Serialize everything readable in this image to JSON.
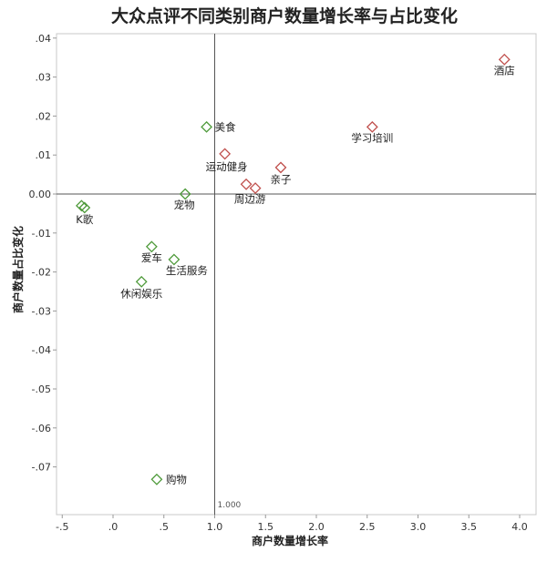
{
  "chart_data": {
    "type": "scatter",
    "title": "大众点评不同类别商户数量增长率与占比变化",
    "xlabel": "商户数量增长率",
    "ylabel": "商户数量占比变化",
    "xlim": [
      -0.55,
      4.05
    ],
    "ylim": [
      -0.0805,
      0.0405
    ],
    "x_ticks": [
      {
        "value": -0.5,
        "label": "-.5"
      },
      {
        "value": 0,
        "label": ".0"
      },
      {
        "value": 0.5,
        "label": ".5"
      },
      {
        "value": 1.0,
        "label": "1.0"
      },
      {
        "value": 1.5,
        "label": "1.5"
      },
      {
        "value": 2.0,
        "label": "2.0"
      },
      {
        "value": 2.5,
        "label": "2.5"
      },
      {
        "value": 3.0,
        "label": "3.0"
      },
      {
        "value": 3.5,
        "label": "3.5"
      },
      {
        "value": 4.0,
        "label": "4.0"
      }
    ],
    "y_ticks": [
      {
        "value": 0.04,
        "label": ".04"
      },
      {
        "value": 0.03,
        "label": ".03"
      },
      {
        "value": 0.02,
        "label": ".02"
      },
      {
        "value": 0.01,
        "label": ".01"
      },
      {
        "value": 0.0,
        "label": "0.00"
      },
      {
        "value": -0.01,
        "label": "-.01"
      },
      {
        "value": -0.02,
        "label": "-.02"
      },
      {
        "value": -0.03,
        "label": "-.03"
      },
      {
        "value": -0.04,
        "label": "-.04"
      },
      {
        "value": -0.05,
        "label": "-.05"
      },
      {
        "value": -0.06,
        "label": "-.06"
      },
      {
        "value": -0.07,
        "label": "-.07"
      }
    ],
    "reference_lines": {
      "x": 1.0,
      "y": 0.0,
      "x_label": "1.000"
    },
    "grid": false,
    "colors": {
      "positive": "#c0504d",
      "negative": "#4e9a3a"
    },
    "points": [
      {
        "label": "酒店",
        "x": 3.85,
        "y": 0.0345,
        "group": "positive"
      },
      {
        "label": "学习培训",
        "x": 2.55,
        "y": 0.0172,
        "group": "positive"
      },
      {
        "label": "运动健身",
        "x": 1.1,
        "y": 0.0103,
        "group": "positive"
      },
      {
        "label": "亲子",
        "x": 1.65,
        "y": 0.0068,
        "group": "positive"
      },
      {
        "label": "",
        "x": 1.31,
        "y": 0.0025,
        "group": "positive"
      },
      {
        "label": "周边游",
        "x": 1.4,
        "y": 0.0015,
        "group": "positive"
      },
      {
        "label": "美食",
        "x": 0.92,
        "y": 0.0172,
        "group": "negative"
      },
      {
        "label": "宠物",
        "x": 0.71,
        "y": 0.0,
        "group": "negative"
      },
      {
        "label": "",
        "x": -0.31,
        "y": -0.003,
        "group": "negative"
      },
      {
        "label": "K歌",
        "x": -0.28,
        "y": -0.0035,
        "group": "negative"
      },
      {
        "label": "爱车",
        "x": 0.38,
        "y": -0.0135,
        "group": "negative"
      },
      {
        "label": "生活服务",
        "x": 0.6,
        "y": -0.0168,
        "group": "negative"
      },
      {
        "label": "休闲娱乐",
        "x": 0.28,
        "y": -0.0225,
        "group": "negative"
      },
      {
        "label": "购物",
        "x": 0.43,
        "y": -0.0732,
        "group": "negative"
      }
    ]
  }
}
